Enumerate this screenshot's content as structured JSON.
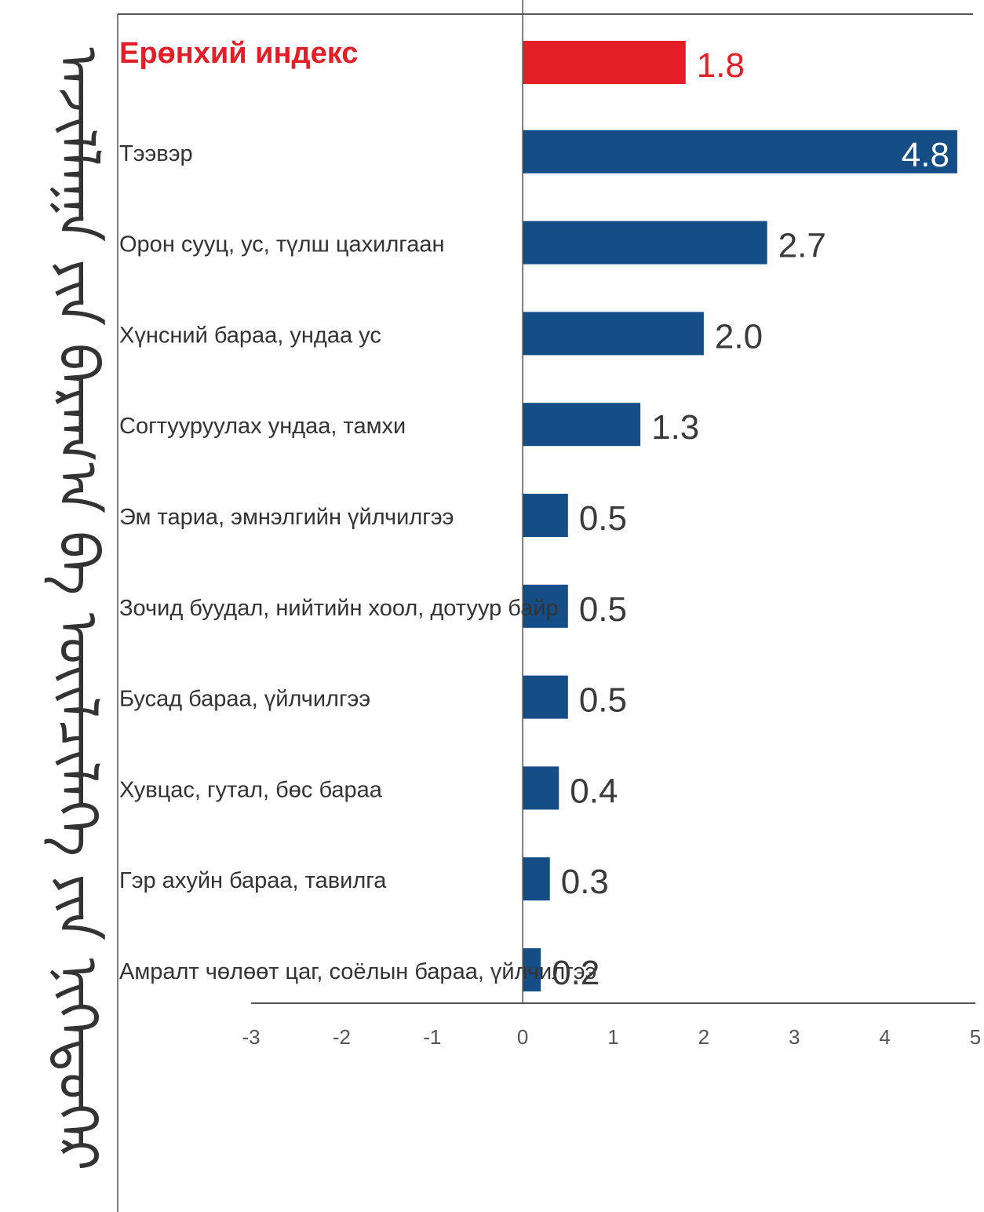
{
  "chart_data": {
    "type": "bar",
    "orientation": "horizontal",
    "title": "",
    "xlabel": "",
    "ylabel": "",
    "xlim": [
      -3,
      5
    ],
    "x_ticks": [
      "-3",
      "-2",
      "-1",
      "0",
      "1",
      "2",
      "3",
      "4",
      "5"
    ],
    "grid": false,
    "categories": [
      "Ерөнхий индекс",
      "Тээвэр",
      "Орон сууц, ус, түлш цахилгаан",
      "Хүнсний бараа, ундаа ус",
      "Согтууруулах ундаа, тамхи",
      "Эм тариа, эмнэлгийн үйлчилгээ",
      "Зочид буудал, нийтийн хоол, дотуур байр",
      "Бусад бараа, үйлчилгээ",
      "Хувцас, гутал, бөс бараа",
      "Гэр ахуйн бараа, тавилга",
      "Амралт чөлөөт цаг, соёлын бараа, үйлчилгээ"
    ],
    "values": [
      1.8,
      4.8,
      2.7,
      2.0,
      1.3,
      0.5,
      0.5,
      0.5,
      0.4,
      0.3,
      0.2
    ],
    "value_labels": [
      "1.8",
      "4.8",
      "2.7",
      "2.0",
      "1.3",
      "0.5",
      "0.5",
      "0.5",
      "0.4",
      "0.3",
      "0.2"
    ],
    "highlight_index": 0,
    "colors": {
      "highlight": "#e41e26",
      "bar": "#154e87",
      "axis": "#555555"
    }
  },
  "side_label": {
    "text": "ᠠᠵᠢᠯᠯᠠᠭᠠ ᠶᠢᠨ ᠪᠠᠷᠠᠭ᠎ᠠ ᠪᠠ ᠦᠢᠯᠴᠢᠯᠡᠭᠡ ᠶᠢᠨ ᠨᠢᠭᠡᠳᠦᠭᠡᠷ"
  }
}
